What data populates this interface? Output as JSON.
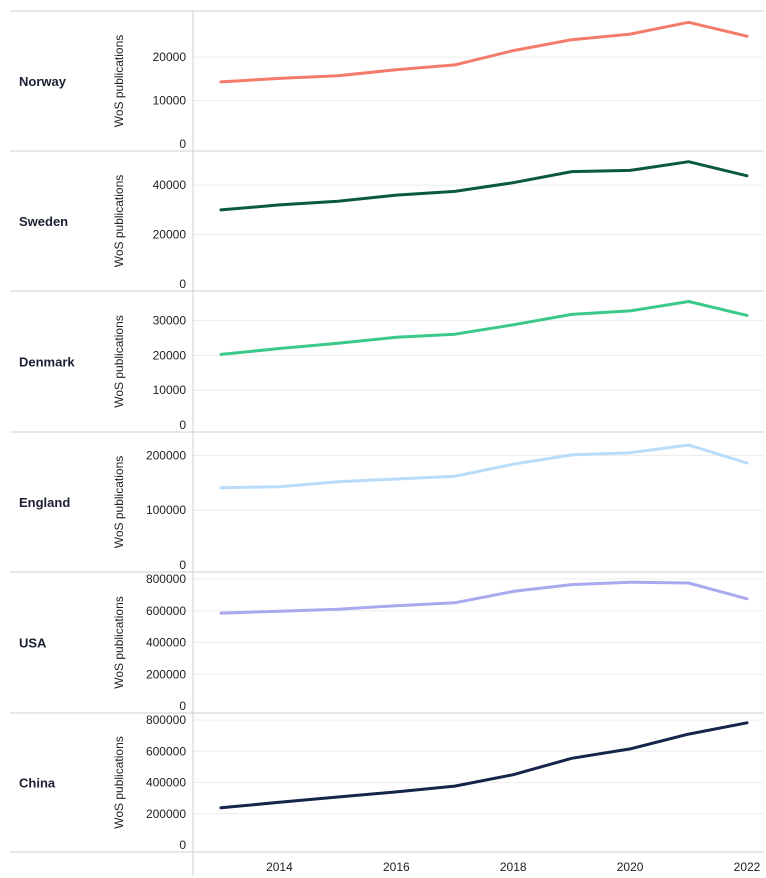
{
  "chart_data": {
    "type": "line",
    "x_ticks": [
      2014,
      2016,
      2018,
      2020,
      2022
    ],
    "x_range": [
      2013,
      2022
    ],
    "ylabel": "WoS publications",
    "grid": true,
    "panels": [
      {
        "name": "Norway",
        "color": "#f47a6a",
        "ylim": [
          0,
          29000
        ],
        "y_ticks": [
          0,
          10000,
          20000
        ],
        "x": [
          2013,
          2014,
          2015,
          2016,
          2017,
          2018,
          2019,
          2020,
          2021,
          2022
        ],
        "values": [
          14300,
          15100,
          15700,
          17100,
          18200,
          21500,
          24000,
          25300,
          28000,
          24800
        ]
      },
      {
        "name": "Sweden",
        "color": "#0c5a3c",
        "ylim": [
          0,
          51000
        ],
        "y_ticks": [
          0,
          20000,
          40000
        ],
        "x": [
          2013,
          2014,
          2015,
          2016,
          2017,
          2018,
          2019,
          2020,
          2021,
          2022
        ],
        "values": [
          30000,
          32000,
          33500,
          36000,
          37500,
          41000,
          45500,
          46000,
          49500,
          43800
        ]
      },
      {
        "name": "Denmark",
        "color": "#3bc98a",
        "ylim": [
          0,
          36500
        ],
        "y_ticks": [
          0,
          10000,
          20000,
          30000
        ],
        "x": [
          2013,
          2014,
          2015,
          2016,
          2017,
          2018,
          2019,
          2020,
          2021,
          2022
        ],
        "values": [
          20300,
          22000,
          23500,
          25200,
          26100,
          28800,
          31800,
          32800,
          35500,
          31500
        ]
      },
      {
        "name": "England",
        "color": "#b9dcfb",
        "ylim": [
          0,
          230000
        ],
        "y_ticks": [
          0,
          100000,
          200000
        ],
        "x": [
          2013,
          2014,
          2015,
          2016,
          2017,
          2018,
          2019,
          2020,
          2021,
          2022
        ],
        "values": [
          141000,
          143000,
          152000,
          157000,
          162000,
          184000,
          201000,
          205000,
          219000,
          186000
        ]
      },
      {
        "name": "USA",
        "color": "#a9a9f0",
        "ylim": [
          0,
          800000
        ],
        "y_ticks": [
          0,
          200000,
          400000,
          600000,
          800000
        ],
        "x": [
          2013,
          2014,
          2015,
          2016,
          2017,
          2018,
          2019,
          2020,
          2021,
          2022
        ],
        "values": [
          585000,
          597000,
          610000,
          632000,
          650000,
          722000,
          765000,
          780000,
          775000,
          675000
        ]
      },
      {
        "name": "China",
        "color": "#15244a",
        "ylim": [
          0,
          800000
        ],
        "y_ticks": [
          0,
          200000,
          400000,
          600000,
          800000
        ],
        "x": [
          2013,
          2014,
          2015,
          2016,
          2017,
          2018,
          2019,
          2020,
          2021,
          2022
        ],
        "values": [
          238000,
          273000,
          307000,
          340000,
          377000,
          450000,
          555000,
          615000,
          710000,
          782000
        ]
      }
    ]
  }
}
